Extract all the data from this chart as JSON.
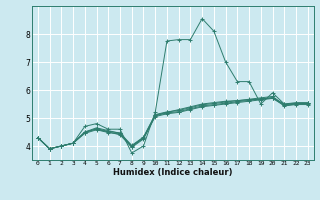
{
  "title": "",
  "xlabel": "Humidex (Indice chaleur)",
  "ylabel": "",
  "background_color": "#cce9f0",
  "grid_color": "#ffffff",
  "line_color": "#2e7d6e",
  "xlim": [
    -0.5,
    23.5
  ],
  "ylim": [
    3.5,
    9.0
  ],
  "yticks": [
    4,
    5,
    6,
    7,
    8
  ],
  "xticks": [
    0,
    1,
    2,
    3,
    4,
    5,
    6,
    7,
    8,
    9,
    10,
    11,
    12,
    13,
    14,
    15,
    16,
    17,
    18,
    19,
    20,
    21,
    22,
    23
  ],
  "series": [
    [
      4.3,
      3.9,
      4.0,
      4.1,
      4.7,
      4.8,
      4.6,
      4.6,
      3.75,
      4.0,
      5.2,
      7.75,
      7.8,
      7.8,
      8.55,
      8.1,
      7.0,
      6.3,
      6.3,
      5.5,
      5.9,
      5.5,
      5.55,
      5.55
    ],
    [
      4.3,
      3.9,
      4.0,
      4.1,
      4.5,
      4.65,
      4.55,
      4.45,
      4.0,
      4.3,
      5.1,
      5.2,
      5.3,
      5.4,
      5.5,
      5.55,
      5.6,
      5.62,
      5.65,
      5.68,
      5.72,
      5.5,
      5.52,
      5.52
    ],
    [
      4.3,
      3.9,
      4.0,
      4.1,
      4.5,
      4.6,
      4.5,
      4.4,
      3.95,
      4.25,
      5.05,
      5.15,
      5.2,
      5.3,
      5.4,
      5.45,
      5.5,
      5.55,
      5.6,
      5.65,
      5.7,
      5.45,
      5.5,
      5.5
    ],
    [
      4.3,
      3.9,
      4.0,
      4.1,
      4.48,
      4.62,
      4.52,
      4.47,
      4.02,
      4.32,
      5.12,
      5.22,
      5.27,
      5.37,
      5.47,
      5.52,
      5.57,
      5.62,
      5.67,
      5.72,
      5.77,
      5.47,
      5.52,
      5.52
    ],
    [
      4.3,
      3.9,
      4.0,
      4.1,
      4.45,
      4.58,
      4.48,
      4.43,
      3.98,
      4.28,
      5.08,
      5.18,
      5.23,
      5.33,
      5.43,
      5.48,
      5.53,
      5.58,
      5.63,
      5.68,
      5.73,
      5.43,
      5.48,
      5.48
    ]
  ]
}
